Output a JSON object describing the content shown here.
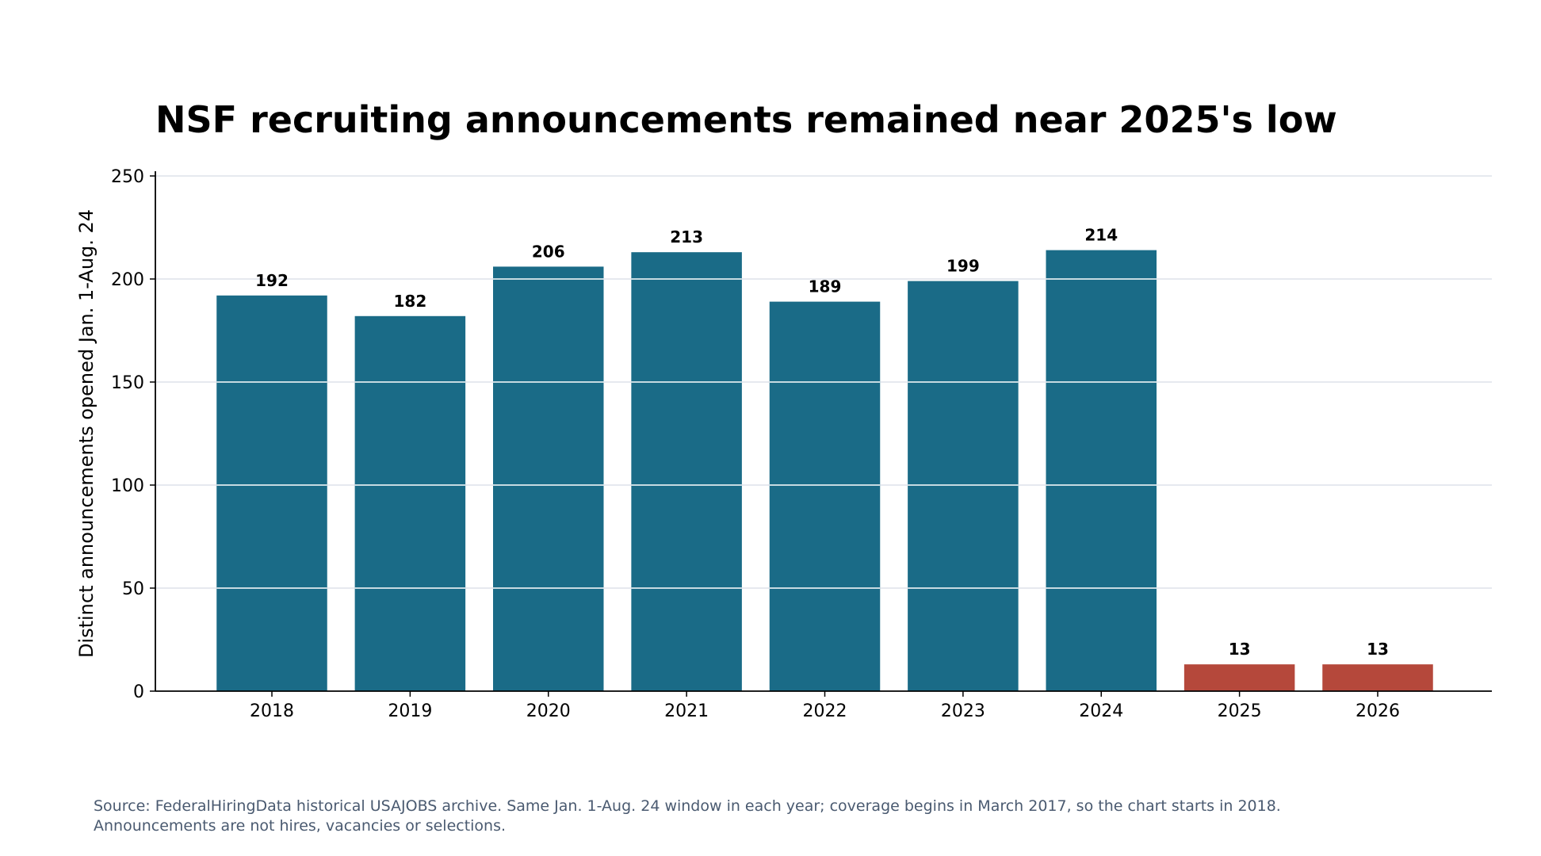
{
  "chart_data": {
    "type": "bar",
    "title": "NSF recruiting announcements remained near 2025's low",
    "xlabel": "",
    "ylabel": "Distinct announcements opened Jan. 1-Aug. 24",
    "categories": [
      "2018",
      "2019",
      "2020",
      "2021",
      "2022",
      "2023",
      "2024",
      "2025",
      "2026"
    ],
    "values": [
      192,
      182,
      206,
      213,
      189,
      199,
      214,
      13,
      13
    ],
    "data_labels": [
      "192",
      "182",
      "206",
      "213",
      "189",
      "199",
      "214",
      "13",
      "13"
    ],
    "ylim": [
      0,
      250
    ],
    "yticks": [
      0,
      50,
      100,
      150,
      200,
      250
    ],
    "ytick_labels": [
      "0",
      "50",
      "100",
      "150",
      "200",
      "250"
    ],
    "grid": "horizontal",
    "legend": "none",
    "colors": {
      "default": "#1a6b87",
      "highlight": "#b5483b",
      "highlight_categories": [
        "2025",
        "2026"
      ],
      "grid": "#dde2ea",
      "grid_over_bars": "#ffffff"
    }
  },
  "source_note": "Source: FederalHiringData historical USAJOBS archive. Same Jan. 1-Aug. 24 window in each year; coverage begins in March 2017, so the chart starts in 2018. Announcements are not hires, vacancies or selections."
}
